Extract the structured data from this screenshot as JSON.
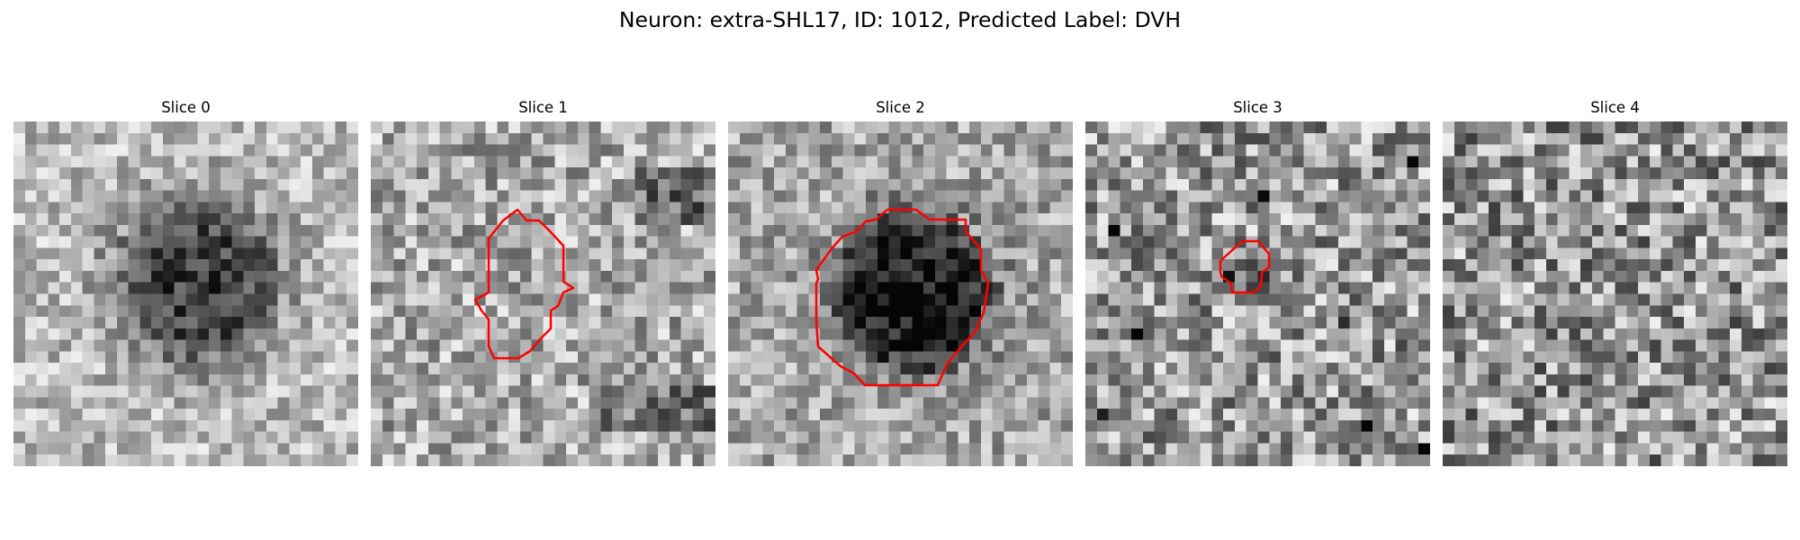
{
  "figure": {
    "title": "Neuron: extra-SHL17, ID: 1012, Predicted Label: DVH"
  },
  "panels": [
    {
      "title": "Slice 0",
      "image": "noisy-grayscale-crop",
      "dark_blob": true,
      "contour": null
    },
    {
      "title": "Slice 1",
      "image": "noisy-grayscale-crop",
      "dark_blob": false,
      "contour": "red-roi-outline"
    },
    {
      "title": "Slice 2",
      "image": "noisy-grayscale-crop",
      "dark_blob": true,
      "contour": "red-roi-outline"
    },
    {
      "title": "Slice 3",
      "image": "noisy-grayscale-crop",
      "dark_blob": false,
      "contour": "red-roi-outline"
    },
    {
      "title": "Slice 4",
      "image": "noisy-grayscale-crop",
      "dark_blob": false,
      "contour": null
    }
  ],
  "colors": {
    "contour": "#ff0000",
    "background": "#ffffff"
  }
}
